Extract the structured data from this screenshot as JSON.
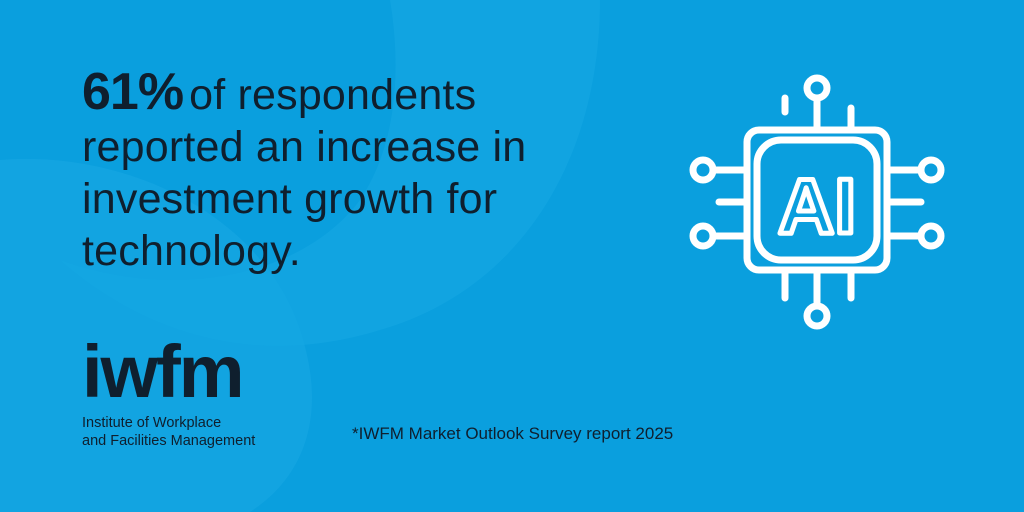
{
  "headline": {
    "stat": "61%",
    "text": "of respondents reported an increase in investment growth for technology."
  },
  "logo": {
    "wordmark": "iwfm",
    "subtitle_line1": "Institute of Workplace",
    "subtitle_line2": "and Facilities Management"
  },
  "footnote": "*IWFM Market Outlook Survey report 2025",
  "icon": {
    "name": "ai-chip-icon",
    "label": "AI"
  },
  "colors": {
    "background": "#0a9fde",
    "text": "#0f1f2e",
    "icon": "#ffffff"
  }
}
